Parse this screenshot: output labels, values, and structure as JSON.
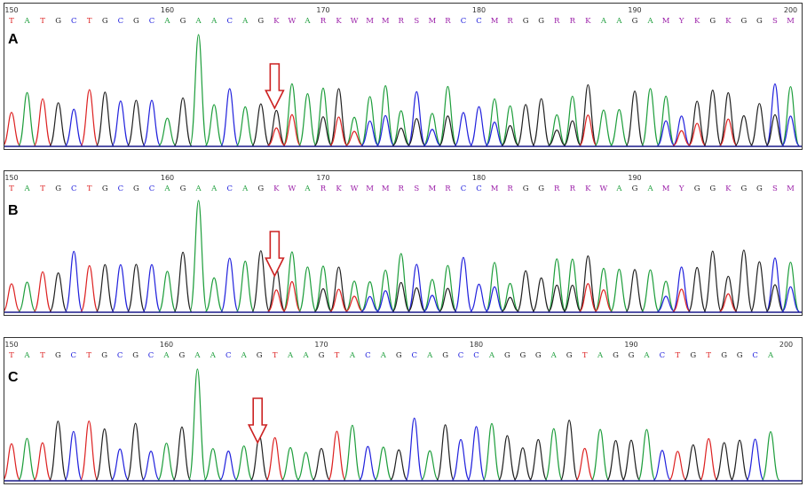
{
  "colors": {
    "A": "#1e9e3c",
    "C": "#2222dd",
    "G": "#222222",
    "T": "#dd2222",
    "ambiguous": "#9b1fa8",
    "arrow": "#cc2222",
    "baseline": "#1a1a8a"
  },
  "panels": [
    {
      "label": "A",
      "ticks": [
        "150",
        "160",
        "170",
        "180",
        "190",
        "200"
      ],
      "sequence": [
        "T",
        "A",
        "T",
        "G",
        "C",
        "T",
        "G",
        "C",
        "G",
        "C",
        "A",
        "G",
        "A",
        "A",
        "C",
        "A",
        "G",
        "K",
        "W",
        "A",
        "R",
        "K",
        "W",
        "M",
        "M",
        "R",
        "S",
        "M",
        "R",
        "C",
        "C",
        "M",
        "R",
        "G",
        "G",
        "R",
        "R",
        "K",
        "A",
        "A",
        "G",
        "A",
        "M",
        "Y",
        "K",
        "G",
        "K",
        "G",
        "G",
        "S",
        "M"
      ],
      "arrow_base_index": 17
    },
    {
      "label": "B",
      "ticks": [
        "150",
        "160",
        "170",
        "180",
        "190"
      ],
      "sequence": [
        "T",
        "A",
        "T",
        "G",
        "C",
        "T",
        "G",
        "C",
        "G",
        "C",
        "A",
        "G",
        "A",
        "A",
        "C",
        "A",
        "G",
        "K",
        "W",
        "A",
        "R",
        "K",
        "W",
        "M",
        "M",
        "R",
        "S",
        "M",
        "R",
        "C",
        "C",
        "M",
        "R",
        "G",
        "G",
        "R",
        "R",
        "K",
        "W",
        "A",
        "G",
        "A",
        "M",
        "Y",
        "G",
        "G",
        "K",
        "G",
        "G",
        "S",
        "M"
      ],
      "arrow_base_index": 17
    },
    {
      "label": "C",
      "ticks": [
        "150",
        "160",
        "170",
        "180",
        "190",
        "200"
      ],
      "sequence": [
        "T",
        "A",
        "T",
        "G",
        "C",
        "T",
        "G",
        "C",
        "G",
        "C",
        "A",
        "G",
        "A",
        "A",
        "C",
        "A",
        "G",
        "T",
        "A",
        "A",
        "G",
        "T",
        "A",
        "C",
        "A",
        "G",
        "C",
        "A",
        "G",
        "C",
        "C",
        "A",
        "G",
        "G",
        "G",
        "A",
        "G",
        "T",
        "A",
        "G",
        "G",
        "A",
        "C",
        "T",
        "G",
        "T",
        "G",
        "G",
        "C",
        "A"
      ],
      "arrow_base_index": 16
    }
  ]
}
